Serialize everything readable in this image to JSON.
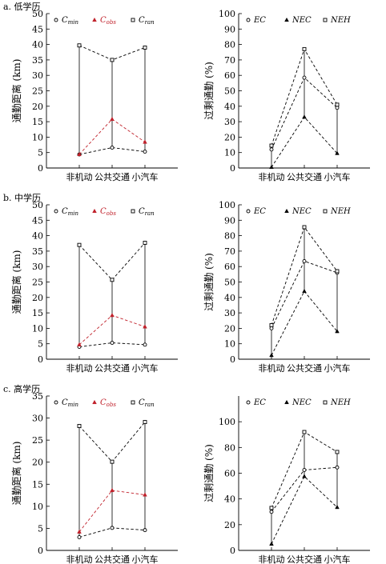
{
  "chart_data": [
    {
      "type": "line",
      "title": "a. 低学历",
      "ylabel": "通勤距离 (km)",
      "ylim": [
        0,
        50
      ],
      "yticks": [
        0,
        5,
        10,
        15,
        20,
        25,
        30,
        35,
        40,
        45,
        50
      ],
      "categories": [
        "非机动",
        "公共交通",
        "小汽车"
      ],
      "legend_position": "top",
      "series": [
        {
          "name": "C_min",
          "label": "C",
          "sub": "min",
          "marker": "circle",
          "color": "#000000",
          "values": [
            4.4,
            6.6,
            5.3
          ]
        },
        {
          "name": "C_obs",
          "label": "C",
          "sub": "obs",
          "marker": "triangle",
          "color": "#c0202a",
          "values": [
            4.4,
            15.8,
            8.4
          ]
        },
        {
          "name": "C_ran",
          "label": "C",
          "sub": "ran",
          "marker": "square",
          "color": "#000000",
          "values": [
            39.7,
            35.0,
            39.0
          ]
        }
      ]
    },
    {
      "type": "line",
      "title": "",
      "ylabel": "过剩通勤 (%)",
      "ylim": [
        0,
        100
      ],
      "yticks": [
        0,
        10,
        20,
        30,
        40,
        50,
        60,
        70,
        80,
        90,
        100
      ],
      "categories": [
        "非机动",
        "公共交通",
        "小汽车"
      ],
      "legend_position": "top",
      "series": [
        {
          "name": "EC",
          "label": "EC",
          "marker": "circle",
          "color": "#000000",
          "values": [
            12.0,
            58.5,
            39.0
          ]
        },
        {
          "name": "NEC",
          "label": "NEC",
          "marker": "triangle",
          "color": "#000000",
          "values": [
            0.5,
            33.0,
            9.5
          ]
        },
        {
          "name": "NEH",
          "label": "NEH",
          "marker": "square",
          "color": "#000000",
          "values": [
            14.5,
            77.0,
            41.0
          ]
        }
      ]
    },
    {
      "type": "line",
      "title": "b. 中学历",
      "ylabel": "通勤距离 (km)",
      "ylim": [
        0,
        50
      ],
      "yticks": [
        0,
        5,
        10,
        15,
        20,
        25,
        30,
        35,
        40,
        45,
        50
      ],
      "categories": [
        "非机动",
        "公共交通",
        "小汽车"
      ],
      "legend_position": "top",
      "series": [
        {
          "name": "C_min",
          "label": "C",
          "sub": "min",
          "marker": "circle",
          "color": "#000000",
          "values": [
            4.0,
            5.3,
            4.7
          ]
        },
        {
          "name": "C_obs",
          "label": "C",
          "sub": "obs",
          "marker": "triangle",
          "color": "#c0202a",
          "values": [
            4.7,
            14.2,
            10.5
          ]
        },
        {
          "name": "C_ran",
          "label": "C",
          "sub": "ran",
          "marker": "square",
          "color": "#000000",
          "values": [
            37.0,
            25.7,
            37.7
          ]
        }
      ]
    },
    {
      "type": "line",
      "title": "",
      "ylabel": "过剩通勤 (%)",
      "ylim": [
        0,
        100
      ],
      "yticks": [
        0,
        10,
        20,
        30,
        40,
        50,
        60,
        70,
        80,
        90,
        100
      ],
      "categories": [
        "非机动",
        "公共交通",
        "小汽车"
      ],
      "legend_position": "top",
      "series": [
        {
          "name": "EC",
          "label": "EC",
          "marker": "circle",
          "color": "#000000",
          "values": [
            20.0,
            63.5,
            56.0
          ]
        },
        {
          "name": "NEC",
          "label": "NEC",
          "marker": "triangle",
          "color": "#000000",
          "values": [
            2.5,
            44.0,
            18.0
          ]
        },
        {
          "name": "NEH",
          "label": "NEH",
          "marker": "square",
          "color": "#000000",
          "values": [
            22.0,
            85.5,
            57.0
          ]
        }
      ]
    },
    {
      "type": "line",
      "title": "c. 高学历",
      "ylabel": "通勤距离 (km)",
      "ylim": [
        0,
        35
      ],
      "yticks": [
        0,
        5,
        10,
        15,
        20,
        25,
        30,
        35
      ],
      "categories": [
        "非机动",
        "公共交通",
        "小汽车"
      ],
      "legend_position": "top",
      "series": [
        {
          "name": "C_min",
          "label": "C",
          "sub": "min",
          "marker": "circle",
          "color": "#000000",
          "values": [
            3.0,
            5.1,
            4.6
          ]
        },
        {
          "name": "C_obs",
          "label": "C",
          "sub": "obs",
          "marker": "triangle",
          "color": "#c0202a",
          "values": [
            4.2,
            13.6,
            12.6
          ]
        },
        {
          "name": "C_ran",
          "label": "C",
          "sub": "ran",
          "marker": "square",
          "color": "#000000",
          "values": [
            28.2,
            20.1,
            29.1
          ]
        }
      ]
    },
    {
      "type": "line",
      "title": "",
      "ylabel": "过剩通勤 (%)",
      "ylim": [
        0,
        120
      ],
      "yticks": [
        0,
        20,
        40,
        60,
        80,
        100
      ],
      "categories": [
        "非机动",
        "公共交通",
        "小汽车"
      ],
      "legend_position": "top",
      "series": [
        {
          "name": "EC",
          "label": "EC",
          "marker": "circle",
          "color": "#000000",
          "values": [
            30.0,
            62.5,
            64.5
          ]
        },
        {
          "name": "NEC",
          "label": "NEC",
          "marker": "triangle",
          "color": "#000000",
          "values": [
            5.0,
            57.5,
            33.5
          ]
        },
        {
          "name": "NEH",
          "label": "NEH",
          "marker": "square",
          "color": "#000000",
          "values": [
            33.0,
            92.0,
            76.5
          ]
        }
      ]
    }
  ]
}
